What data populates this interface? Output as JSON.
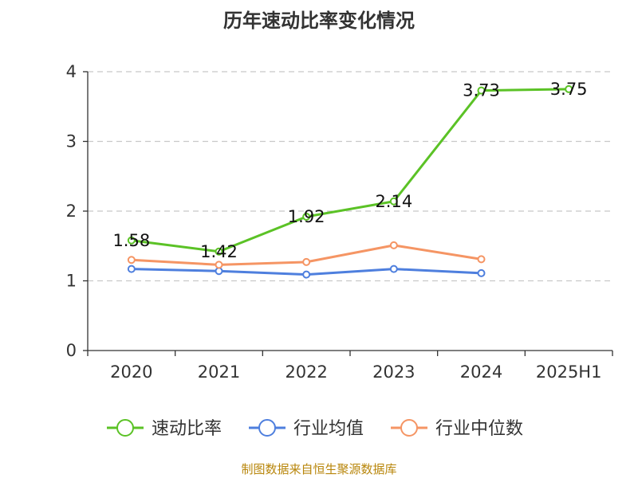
{
  "colors": {
    "speed_ratio": "#5bc226",
    "industry_avg": "#4e7fde",
    "industry_median": "#f59564",
    "source_text": "#b8860b"
  },
  "chart_data": {
    "type": "line",
    "title": "历年速动比率变化情况",
    "categories": [
      "2020",
      "2021",
      "2022",
      "2023",
      "2024",
      "2025H1"
    ],
    "ylim": [
      0,
      4
    ],
    "yticks": [
      "0",
      "1",
      "2",
      "3",
      "4"
    ],
    "grid": true,
    "legend_position": "bottom",
    "series": [
      {
        "name": "速动比率",
        "values": [
          1.58,
          1.42,
          1.92,
          2.14,
          3.73,
          3.75
        ],
        "labels": [
          "1.58",
          "1.42",
          "1.92",
          "2.14",
          "3.73",
          "3.75"
        ]
      },
      {
        "name": "行业均值",
        "values": [
          1.17,
          1.14,
          1.09,
          1.17,
          1.11,
          null
        ]
      },
      {
        "name": "行业中位数",
        "values": [
          1.3,
          1.23,
          1.27,
          1.51,
          1.31,
          null
        ]
      }
    ]
  },
  "source": "制图数据来自恒生聚源数据库"
}
